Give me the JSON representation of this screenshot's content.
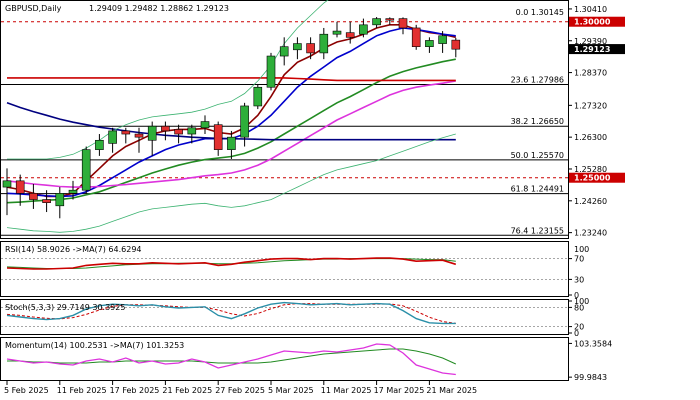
{
  "chart_data": {
    "type": "candlestick",
    "symbol_label": "GBPUSD,Daily",
    "ohlc_label": "1.29409 1.29482 1.28862 1.29123",
    "price_range": [
      1.231,
      1.306
    ],
    "price_ticks": [
      "1.30410",
      "1.29390",
      "1.28370",
      "1.27320",
      "1.26300",
      "1.25280",
      "1.24260",
      "1.23240"
    ],
    "current_price": {
      "value": 1.29123,
      "label": "1.29123"
    },
    "level_tags": [
      {
        "value": 1.3,
        "label": "1.30000"
      },
      {
        "value": 1.25,
        "label": "1.25000"
      }
    ],
    "fib_levels": [
      {
        "value": 1.30145,
        "label": "0.0 1.30145"
      },
      {
        "value": 1.27986,
        "label": "23.6 1.27986"
      },
      {
        "value": 1.2665,
        "label": "38.2 1.26650"
      },
      {
        "value": 1.2557,
        "label": "50.0 1.25570"
      },
      {
        "value": 1.24491,
        "label": "61.8 1.24491"
      },
      {
        "value": 1.23155,
        "label": "76.4 1.23155"
      }
    ],
    "resistance_lines": [
      1.3,
      1.25
    ],
    "x_labels": [
      {
        "bar": 0,
        "label": "5 Feb 2025"
      },
      {
        "bar": 4,
        "label": "11 Feb 2025"
      },
      {
        "bar": 8,
        "label": "17 Feb 2025"
      },
      {
        "bar": 12,
        "label": "21 Feb 2025"
      },
      {
        "bar": 16,
        "label": "27 Feb 2025"
      },
      {
        "bar": 20,
        "label": "5 Mar 2025"
      },
      {
        "bar": 24,
        "label": "11 Mar 2025"
      },
      {
        "bar": 28,
        "label": "17 Mar 2025"
      },
      {
        "bar": 32,
        "label": "21 Mar 2025"
      }
    ],
    "candles": [
      {
        "o": 1.247,
        "h": 1.253,
        "l": 1.238,
        "c": 1.249
      },
      {
        "o": 1.249,
        "h": 1.251,
        "l": 1.241,
        "c": 1.245
      },
      {
        "o": 1.245,
        "h": 1.248,
        "l": 1.24,
        "c": 1.243
      },
      {
        "o": 1.243,
        "h": 1.246,
        "l": 1.239,
        "c": 1.242
      },
      {
        "o": 1.241,
        "h": 1.247,
        "l": 1.237,
        "c": 1.245
      },
      {
        "o": 1.245,
        "h": 1.249,
        "l": 1.243,
        "c": 1.246
      },
      {
        "o": 1.246,
        "h": 1.26,
        "l": 1.245,
        "c": 1.259
      },
      {
        "o": 1.259,
        "h": 1.264,
        "l": 1.257,
        "c": 1.262
      },
      {
        "o": 1.261,
        "h": 1.266,
        "l": 1.258,
        "c": 1.265
      },
      {
        "o": 1.265,
        "h": 1.266,
        "l": 1.261,
        "c": 1.264
      },
      {
        "o": 1.264,
        "h": 1.266,
        "l": 1.258,
        "c": 1.263
      },
      {
        "o": 1.262,
        "h": 1.268,
        "l": 1.257,
        "c": 1.2665
      },
      {
        "o": 1.2665,
        "h": 1.268,
        "l": 1.262,
        "c": 1.265
      },
      {
        "o": 1.2655,
        "h": 1.267,
        "l": 1.261,
        "c": 1.264
      },
      {
        "o": 1.264,
        "h": 1.267,
        "l": 1.261,
        "c": 1.266
      },
      {
        "o": 1.266,
        "h": 1.27,
        "l": 1.264,
        "c": 1.268
      },
      {
        "o": 1.267,
        "h": 1.268,
        "l": 1.257,
        "c": 1.259
      },
      {
        "o": 1.259,
        "h": 1.265,
        "l": 1.256,
        "c": 1.263
      },
      {
        "o": 1.263,
        "h": 1.274,
        "l": 1.26,
        "c": 1.273
      },
      {
        "o": 1.273,
        "h": 1.28,
        "l": 1.272,
        "c": 1.279
      },
      {
        "o": 1.279,
        "h": 1.29,
        "l": 1.278,
        "c": 1.289
      },
      {
        "o": 1.289,
        "h": 1.295,
        "l": 1.286,
        "c": 1.292
      },
      {
        "o": 1.291,
        "h": 1.295,
        "l": 1.288,
        "c": 1.293
      },
      {
        "o": 1.293,
        "h": 1.295,
        "l": 1.288,
        "c": 1.29
      },
      {
        "o": 1.29,
        "h": 1.298,
        "l": 1.288,
        "c": 1.296
      },
      {
        "o": 1.296,
        "h": 1.3,
        "l": 1.295,
        "c": 1.297
      },
      {
        "o": 1.2965,
        "h": 1.3,
        "l": 1.293,
        "c": 1.295
      },
      {
        "o": 1.296,
        "h": 1.301,
        "l": 1.295,
        "c": 1.299
      },
      {
        "o": 1.299,
        "h": 1.3015,
        "l": 1.298,
        "c": 1.301
      },
      {
        "o": 1.301,
        "h": 1.3014,
        "l": 1.299,
        "c": 1.3005
      },
      {
        "o": 1.301,
        "h": 1.3014,
        "l": 1.296,
        "c": 1.298
      },
      {
        "o": 1.298,
        "h": 1.299,
        "l": 1.291,
        "c": 1.292
      },
      {
        "o": 1.292,
        "h": 1.295,
        "l": 1.29,
        "c": 1.294
      },
      {
        "o": 1.293,
        "h": 1.297,
        "l": 1.29,
        "c": 1.2955
      },
      {
        "o": 1.2941,
        "h": 1.2948,
        "l": 1.2886,
        "c": 1.2912
      }
    ],
    "ma_lines": [
      {
        "color": "#8b0000",
        "values": [
          1.247,
          1.2462,
          1.245,
          1.244,
          1.244,
          1.245,
          1.249,
          1.253,
          1.257,
          1.26,
          1.262,
          1.264,
          1.265,
          1.2655,
          1.2655,
          1.2658,
          1.2645,
          1.264,
          1.266,
          1.27,
          1.276,
          1.283,
          1.287,
          1.289,
          1.2915,
          1.2935,
          1.2945,
          1.296,
          1.298,
          1.299,
          1.299,
          1.2975,
          1.2965,
          1.296,
          1.295
        ]
      },
      {
        "color": "#0000cc",
        "values": [
          1.245,
          1.2448,
          1.2445,
          1.2442,
          1.244,
          1.2442,
          1.2455,
          1.2475,
          1.25,
          1.2525,
          1.255,
          1.257,
          1.259,
          1.2605,
          1.2615,
          1.2625,
          1.2625,
          1.2625,
          1.264,
          1.2665,
          1.27,
          1.2745,
          1.279,
          1.2825,
          1.2855,
          1.2885,
          1.2905,
          1.293,
          1.2955,
          1.297,
          1.298,
          1.2975,
          1.2968,
          1.296,
          1.2955
        ]
      },
      {
        "color": "#228b22",
        "values": [
          1.242,
          1.2422,
          1.2425,
          1.2428,
          1.243,
          1.2435,
          1.2445,
          1.2455,
          1.247,
          1.2485,
          1.25,
          1.2515,
          1.2528,
          1.254,
          1.255,
          1.2558,
          1.2563,
          1.2568,
          1.2578,
          1.2595,
          1.2615,
          1.264,
          1.2665,
          1.269,
          1.2715,
          1.274,
          1.276,
          1.2782,
          1.2805,
          1.2825,
          1.284,
          1.2852,
          1.2862,
          1.2872,
          1.288
        ]
      },
      {
        "color": "#dd33dd",
        "values": [
          1.249,
          1.2485,
          1.248,
          1.2476,
          1.2472,
          1.247,
          1.247,
          1.2472,
          1.2475,
          1.2478,
          1.2482,
          1.2486,
          1.249,
          1.2494,
          1.25,
          1.2506,
          1.251,
          1.2515,
          1.2525,
          1.254,
          1.256,
          1.2585,
          1.261,
          1.2635,
          1.266,
          1.2685,
          1.2705,
          1.2725,
          1.2745,
          1.2765,
          1.278,
          1.279,
          1.2797,
          1.2803,
          1.281
        ]
      },
      {
        "color": "#cc0000",
        "values": [
          1.282,
          1.282,
          1.282,
          1.282,
          1.282,
          1.282,
          1.282,
          1.282,
          1.282,
          1.282,
          1.282,
          1.282,
          1.282,
          1.282,
          1.282,
          1.282,
          1.282,
          1.282,
          1.282,
          1.282,
          1.282,
          1.282,
          1.2818,
          1.2816,
          1.2814,
          1.2812,
          1.2812,
          1.2812,
          1.2812,
          1.2812,
          1.2812,
          1.2812,
          1.2812,
          1.2812,
          1.2812
        ]
      },
      {
        "color": "#000080",
        "values": [
          1.274,
          1.2725,
          1.2712,
          1.27,
          1.2688,
          1.2678,
          1.267,
          1.2662,
          1.2656,
          1.265,
          1.2645,
          1.264,
          1.2636,
          1.2633,
          1.263,
          1.2628,
          1.2626,
          1.2625,
          1.2624,
          1.2623,
          1.2622,
          1.2622,
          1.2622,
          1.2622,
          1.2622,
          1.2622,
          1.2622,
          1.2622,
          1.2622,
          1.2622,
          1.2622,
          1.2622,
          1.2622,
          1.2622,
          1.2622
        ]
      },
      {
        "color": "#3cb371",
        "thin": true,
        "values": [
          1.234,
          1.2335,
          1.233,
          1.2328,
          1.2325,
          1.2328,
          1.2335,
          1.2345,
          1.236,
          1.2375,
          1.239,
          1.24,
          1.2405,
          1.241,
          1.2415,
          1.2418,
          1.241,
          1.2405,
          1.241,
          1.242,
          1.243,
          1.245,
          1.247,
          1.249,
          1.251,
          1.2525,
          1.2535,
          1.2545,
          1.2555,
          1.257,
          1.2585,
          1.26,
          1.2615,
          1.2628,
          1.264
        ]
      },
      {
        "color": "#3cb371",
        "thin": true,
        "values": [
          1.256,
          1.256,
          1.256,
          1.256,
          1.2565,
          1.2575,
          1.2595,
          1.262,
          1.265,
          1.267,
          1.2685,
          1.2695,
          1.27,
          1.2705,
          1.271,
          1.272,
          1.2735,
          1.2745,
          1.277,
          1.281,
          1.286,
          1.293,
          1.298,
          1.302,
          1.306,
          1.309,
          1.311,
          1.313,
          1.315,
          1.316,
          1.317,
          1.3165,
          1.3155,
          1.3145,
          1.313
        ]
      }
    ],
    "rsi": {
      "label": "RSI(14) 58.9026 ->MA(7) 64.6294",
      "range": [
        0,
        100
      ],
      "ticks": [
        {
          "v": 70,
          "label": "70"
        },
        {
          "v": 30,
          "label": "30"
        },
        {
          "v": 0,
          "label": "0"
        }
      ],
      "tick_100": "100",
      "level_lines": [
        70,
        30
      ],
      "rsi_values": [
        52,
        51,
        50,
        50,
        51,
        52,
        57,
        59,
        61,
        60,
        60,
        62,
        61,
        60,
        61,
        62,
        57,
        59,
        63,
        66,
        69,
        70,
        70,
        68,
        70,
        70,
        69,
        70,
        71,
        71,
        69,
        65,
        66,
        67,
        59
      ],
      "ma_values": [
        54,
        53,
        52,
        51,
        51,
        51,
        52,
        54,
        56,
        58,
        59,
        60,
        60,
        61,
        61,
        61,
        60,
        60,
        61,
        62,
        64,
        66,
        67,
        68,
        69,
        69,
        70,
        70,
        70,
        70,
        70,
        69,
        68,
        68,
        65
      ]
    },
    "stoch": {
      "label": "Stoch(5,3,3) 29.7149 30.3925",
      "range": [
        0,
        100
      ],
      "ticks": [
        {
          "v": 100,
          "label": "100"
        },
        {
          "v": 80,
          "label": "80"
        },
        {
          "v": 20,
          "label": "20"
        },
        {
          "v": 0,
          "label": "0"
        }
      ],
      "level_lines": [
        80,
        20
      ],
      "k_values": [
        55,
        50,
        45,
        42,
        45,
        55,
        75,
        85,
        90,
        88,
        85,
        88,
        82,
        78,
        80,
        82,
        55,
        45,
        60,
        78,
        90,
        95,
        92,
        88,
        90,
        92,
        88,
        90,
        92,
        90,
        70,
        45,
        32,
        30,
        30
      ],
      "d_values": [
        58,
        55,
        50,
        46,
        44,
        48,
        58,
        72,
        83,
        88,
        88,
        87,
        85,
        82,
        80,
        80,
        72,
        60,
        53,
        61,
        76,
        88,
        92,
        92,
        90,
        90,
        90,
        90,
        90,
        91,
        85,
        68,
        49,
        36,
        30
      ]
    },
    "momentum": {
      "label": "Momentum(14) 100.2531 ->MA(7) 101.3253",
      "range": [
        99.8,
        103.8
      ],
      "ticks": [
        {
          "v": 103.3584,
          "label": "103.3584"
        },
        {
          "v": 99.9843,
          "label": "99.9843"
        }
      ],
      "mom_values": [
        101.8,
        101.6,
        101.4,
        101.5,
        101.3,
        101.2,
        101.6,
        101.8,
        101.5,
        101.9,
        101.4,
        101.6,
        101.3,
        101.4,
        101.8,
        101.5,
        100.9,
        101.2,
        101.5,
        101.8,
        102.2,
        102.6,
        102.5,
        102.4,
        102.6,
        102.5,
        102.7,
        102.9,
        103.3,
        103.2,
        102.4,
        101.2,
        100.8,
        100.4,
        100.25
      ],
      "ma_values": [
        101.6,
        101.6,
        101.5,
        101.5,
        101.4,
        101.4,
        101.4,
        101.5,
        101.5,
        101.6,
        101.6,
        101.6,
        101.6,
        101.6,
        101.6,
        101.5,
        101.4,
        101.4,
        101.4,
        101.4,
        101.5,
        101.7,
        101.9,
        102.1,
        102.3,
        102.4,
        102.5,
        102.6,
        102.7,
        102.8,
        102.8,
        102.6,
        102.3,
        101.9,
        101.3
      ]
    }
  }
}
